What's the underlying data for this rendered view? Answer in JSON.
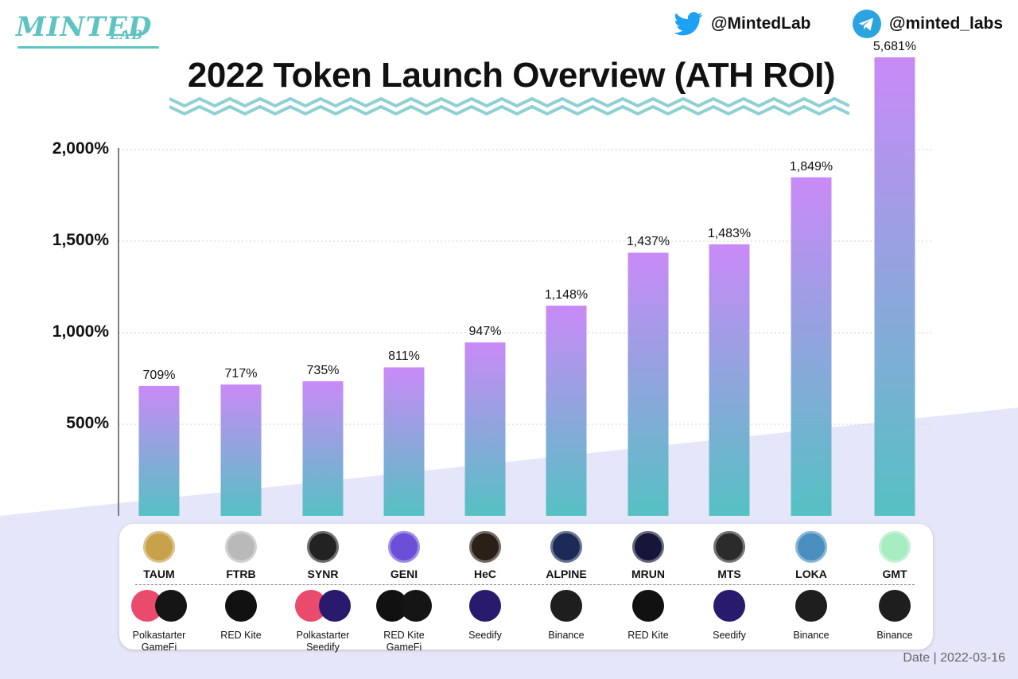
{
  "brand": {
    "logo_main": "MINTED",
    "logo_sub": "LAB"
  },
  "social": {
    "twitter": {
      "icon": "twitter-bird-icon",
      "handle": "@MintedLab",
      "color": "#1da1f2"
    },
    "telegram": {
      "icon": "telegram-plane-icon",
      "handle": "@minted_labs",
      "color": "#2aa3df"
    }
  },
  "colors": {
    "bar_top": "#c98af7",
    "bar_bottom": "#55c1c3",
    "zigzag": "#8fd0d4",
    "wedge": "#e6e6fa"
  },
  "chart_data": {
    "type": "bar",
    "title": "2022 Token Launch Overview (ATH ROI)",
    "xlabel": "",
    "ylabel": "",
    "categories": [
      "TAUM",
      "FTRB",
      "SYNR",
      "GENI",
      "HeC",
      "ALPINE",
      "MRUN",
      "MTS",
      "LOKA",
      "GMT"
    ],
    "values": [
      709,
      717,
      735,
      811,
      947,
      1148,
      1437,
      1483,
      1849,
      5681
    ],
    "value_labels": [
      "709%",
      "717%",
      "735%",
      "811%",
      "947%",
      "1,148%",
      "1,437%",
      "1,483%",
      "1,849%",
      "5,681%"
    ],
    "yticks": [
      500,
      1000,
      1500,
      2000
    ],
    "ytick_labels": [
      "500%",
      "1,000%",
      "1,500%",
      "2,000%"
    ],
    "ylim": [
      0,
      2000
    ],
    "grid": true,
    "note": "GMT bar extends beyond axis top"
  },
  "tokens": [
    {
      "symbol": "TAUM",
      "icon": "taum-token-icon",
      "icon_bg": "#c7a24a",
      "platforms": [
        "Polkastarter",
        "GameFi"
      ]
    },
    {
      "symbol": "FTRB",
      "icon": "ftrb-token-icon",
      "icon_bg": "#b9b9b9",
      "platforms": [
        "RED Kite"
      ]
    },
    {
      "symbol": "SYNR",
      "icon": "synr-token-icon",
      "icon_bg": "#222222",
      "platforms": [
        "Polkastarter",
        "Seedify"
      ]
    },
    {
      "symbol": "GENI",
      "icon": "geni-token-icon",
      "icon_bg": "#6b4fd8",
      "platforms": [
        "RED Kite",
        "GameFi"
      ]
    },
    {
      "symbol": "HeC",
      "icon": "hec-token-icon",
      "icon_bg": "#2a2018",
      "platforms": [
        "Seedify"
      ]
    },
    {
      "symbol": "ALPINE",
      "icon": "alpine-token-icon",
      "icon_bg": "#1b2a57",
      "platforms": [
        "Binance"
      ]
    },
    {
      "symbol": "MRUN",
      "icon": "mrun-token-icon",
      "icon_bg": "#16163a",
      "platforms": [
        "RED Kite"
      ]
    },
    {
      "symbol": "MTS",
      "icon": "mts-token-icon",
      "icon_bg": "#2b2b2b",
      "platforms": [
        "Seedify"
      ]
    },
    {
      "symbol": "LOKA",
      "icon": "loka-token-icon",
      "icon_bg": "#4a8fbf",
      "platforms": [
        "Binance"
      ]
    },
    {
      "symbol": "GMT",
      "icon": "gmt-token-icon",
      "icon_bg": "#a8ecc2",
      "platforms": [
        "Binance"
      ]
    }
  ],
  "platform_style": {
    "Polkastarter": {
      "icon": "polkastarter-icon",
      "bg": "#ea4a6b"
    },
    "GameFi": {
      "icon": "gamefi-icon",
      "bg": "#151515"
    },
    "RED Kite": {
      "icon": "red-kite-icon",
      "bg": "#111111"
    },
    "Seedify": {
      "icon": "seedify-icon",
      "bg": "#2a1a6e"
    },
    "Binance": {
      "icon": "binance-icon",
      "bg": "#1e1e1e"
    }
  },
  "date_label": "Date | 2022-03-16"
}
